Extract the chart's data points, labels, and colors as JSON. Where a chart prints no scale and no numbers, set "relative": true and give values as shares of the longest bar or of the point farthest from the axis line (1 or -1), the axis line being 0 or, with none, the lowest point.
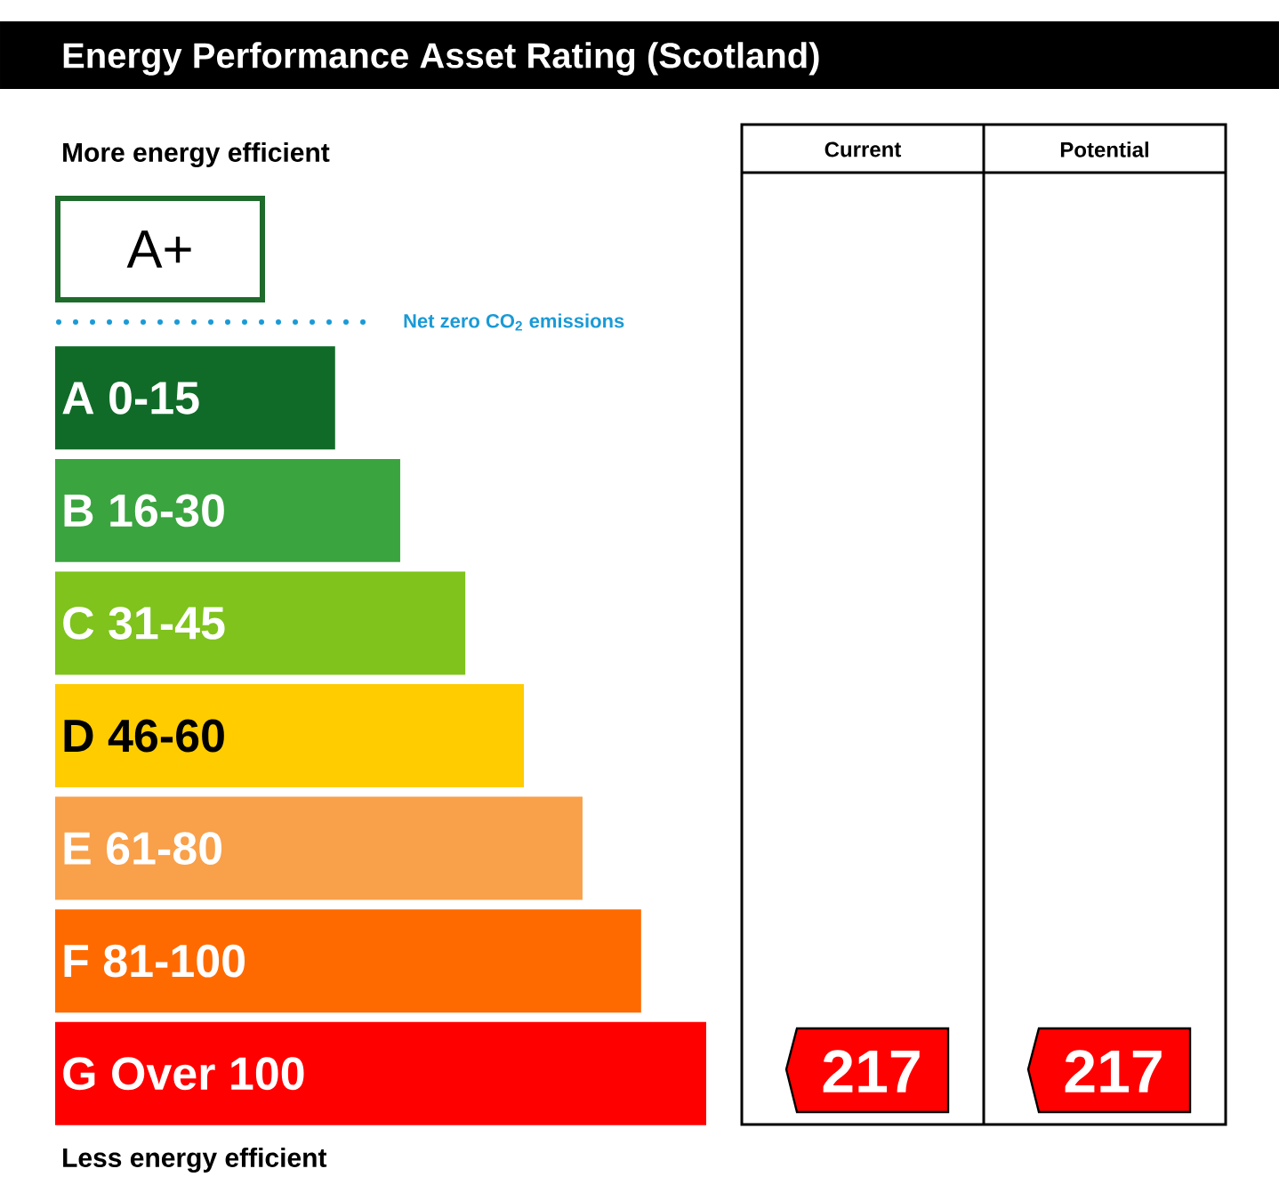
{
  "chart_data": {
    "type": "bar",
    "orientation": "horizontal",
    "relative": true,
    "title": "Energy Performance Asset Rating (Scotland)",
    "categories": [
      "A 0-15",
      "B 16-30",
      "C 31-45",
      "D 46-60",
      "E 61-80",
      "F 81-100",
      "G Over 100"
    ],
    "values": [
      0.43,
      0.53,
      0.63,
      0.72,
      0.81,
      0.9,
      1
    ],
    "colors": [
      "#116b28",
      "#3aa43f",
      "#7fc31c",
      "#ffcc00",
      "#f9a04a",
      "#ff6a00",
      "#ff0000"
    ],
    "annotations": [
      "More energy efficient",
      "Less energy efficient",
      "A+",
      "Net zero CO$_{2}$ emissions",
      "Current",
      "Potential",
      "217",
      "217"
    ]
  }
}
